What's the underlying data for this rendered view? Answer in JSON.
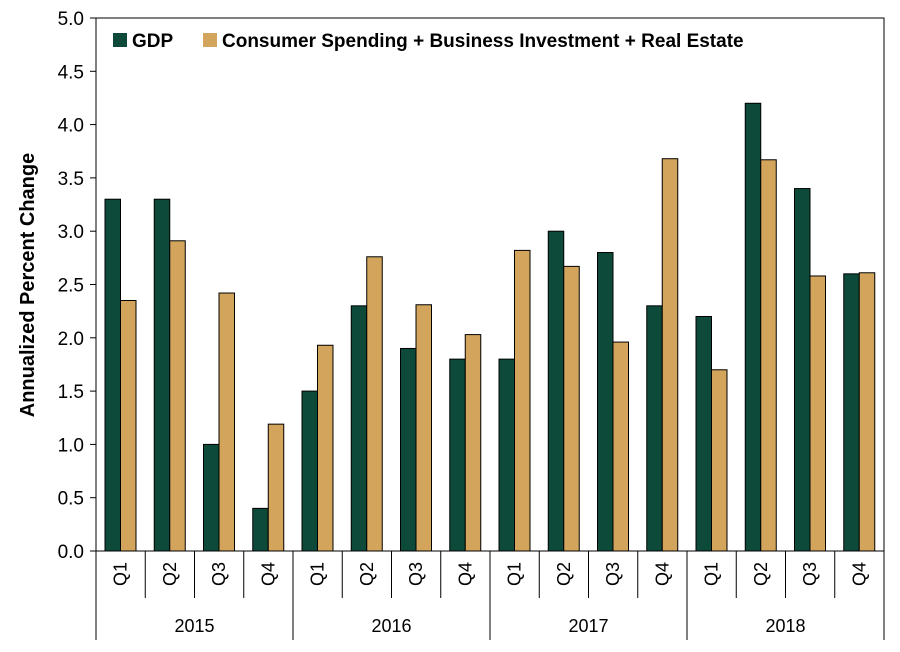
{
  "colors": {
    "gdp": "#0d4a3a",
    "other": "#d2a45c",
    "stroke": "#000000",
    "background": "#ffffff"
  },
  "chart_data": {
    "type": "bar",
    "title": "",
    "xlabel": "",
    "ylabel": "Annualized Percent Change",
    "ylim": [
      0,
      5
    ],
    "yticks": [
      "0.0",
      "0.5",
      "1.0",
      "1.5",
      "2.0",
      "2.5",
      "3.0",
      "3.5",
      "4.0",
      "4.5",
      "5.0"
    ],
    "grid": false,
    "legend_position": "top",
    "categories": [
      "Q1",
      "Q2",
      "Q3",
      "Q4",
      "Q1",
      "Q2",
      "Q3",
      "Q4",
      "Q1",
      "Q2",
      "Q3",
      "Q4",
      "Q1",
      "Q2",
      "Q3",
      "Q4"
    ],
    "groups": [
      "2015",
      "2016",
      "2017",
      "2018"
    ],
    "series": [
      {
        "name": "GDP",
        "values": [
          3.3,
          3.3,
          1.0,
          0.4,
          1.5,
          2.3,
          1.9,
          1.8,
          1.8,
          3.0,
          2.8,
          2.3,
          2.2,
          4.2,
          3.4,
          2.6
        ]
      },
      {
        "name": "Consumer Spending + Business Investment + Real Estate",
        "values": [
          2.35,
          2.91,
          2.42,
          1.19,
          1.93,
          2.76,
          2.31,
          2.03,
          2.82,
          2.67,
          1.96,
          3.68,
          1.7,
          3.67,
          2.58,
          2.61
        ]
      }
    ]
  }
}
